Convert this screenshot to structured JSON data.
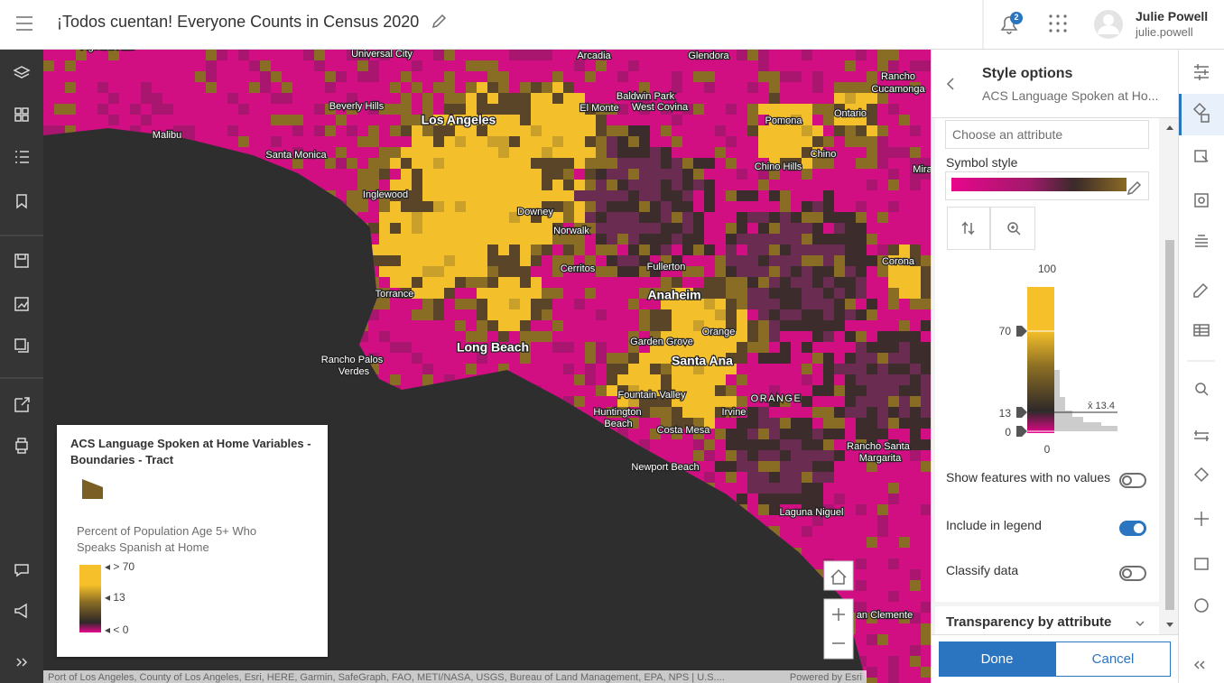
{
  "header": {
    "title": "¡Todos cuentan! Everyone Counts in Census 2020",
    "notification_count": "2",
    "user_name": "Julie Powell",
    "user_id": "julie.powell"
  },
  "map": {
    "labels": [
      "Agoura Hills",
      "Universal City",
      "Arcadia",
      "Glendora",
      "Rancho",
      "Cucamonga",
      "Beverly Hills",
      "Los Angeles",
      "Baldwin Park",
      "West Covina",
      "El Monte",
      "Pomona",
      "Ontario",
      "Malibu",
      "Santa Monica",
      "Chino Hills",
      "Chino",
      "Mira",
      "Inglewood",
      "Downey",
      "Norwalk",
      "Cerritos",
      "Fullerton",
      "Corona",
      "Torrance",
      "Anaheim",
      "Orange",
      "Garden Grove",
      "Long Beach",
      "Santa Ana",
      "Rancho Palos",
      "Verdes",
      "ORANGE",
      "Fountain Valley",
      "Irvine",
      "Huntington",
      "Beach",
      "Costa Mesa",
      "Rancho Santa",
      "Margarita",
      "Newport Beach",
      "Laguna Niguel",
      "an Clemente"
    ],
    "attribution": "Port of Los Angeles, County of Los Angeles, Esri, HERE, Garmin, SafeGraph, FAO, METI/NASA, USGS, Bureau of Land Management, EPA, NPS | U.S....",
    "powered_by": "Powered by Esri"
  },
  "legend": {
    "layer_title": "ACS Language Spoken at Home Variables - Boundaries - Tract",
    "field": "Percent of Population Age 5+ Who Speaks Spanish at Home",
    "labels": [
      "> 70",
      "13",
      "< 0"
    ]
  },
  "style_panel": {
    "title": "Style options",
    "subtitle": "ACS Language Spoken at Ho...",
    "attribute_placeholder": "Choose an attribute",
    "symbol_style": "Symbol style",
    "slider": {
      "max": "100",
      "handle_high": "70",
      "handle_mid": "13",
      "handle_low": "0",
      "min": "0",
      "mean": "x̄ 13.4"
    },
    "toggles": [
      {
        "label": "Show features with no values",
        "on": false
      },
      {
        "label": "Include in legend",
        "on": true
      },
      {
        "label": "Classify data",
        "on": false
      }
    ],
    "section": "Transparency by attribute",
    "done": "Done",
    "cancel": "Cancel"
  }
}
